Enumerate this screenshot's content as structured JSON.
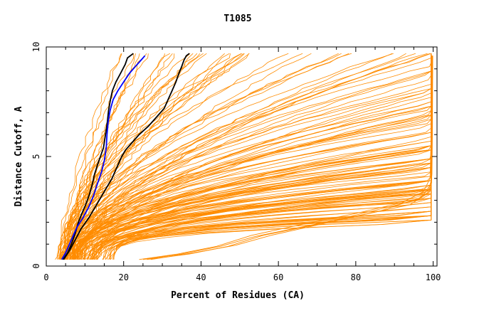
{
  "chart_data": {
    "type": "line",
    "title": "T1085",
    "xlabel": "Percent of Residues (CA)",
    "ylabel": "Distance Cutoff, A",
    "xlim": [
      0,
      101
    ],
    "ylim": [
      0,
      10
    ],
    "x_ticks": [
      0,
      20,
      40,
      60,
      80,
      100
    ],
    "y_ticks": [
      0,
      5,
      10
    ],
    "x_tick_labels": [
      "0",
      "20",
      "40",
      "60",
      "80",
      "100"
    ],
    "y_tick_labels": [
      "0",
      "5",
      "10"
    ],
    "grid": false,
    "colors": {
      "bundle": "#ff8c00",
      "highlight_black": "#000000",
      "highlight_blue": "#0000ff"
    },
    "bundle_groups": [
      {
        "x0": [
          2.5,
          6.5
        ],
        "w": [
          0.5,
          1.2
        ],
        "k": [
          1.4,
          2.2
        ],
        "count": 34
      },
      {
        "x0": [
          4.0,
          9.0
        ],
        "w": [
          0.8,
          2.0
        ],
        "k": [
          1.7,
          2.8
        ],
        "count": 44
      },
      {
        "x0": [
          6.0,
          13.0
        ],
        "w": [
          1.2,
          3.0
        ],
        "k": [
          2.0,
          3.6
        ],
        "count": 42
      },
      {
        "x0": [
          9.0,
          17.0
        ],
        "w": [
          2.2,
          4.8
        ],
        "k": [
          2.4,
          4.5
        ],
        "count": 30
      }
    ],
    "outlier_series": [
      {
        "name": "",
        "x": [
          24.0,
          34.0,
          44.0,
          53.0,
          66.0,
          80.0,
          92.0,
          97.5,
          99.2,
          99.5,
          99.6
        ],
        "y": [
          0.3,
          0.55,
          0.9,
          1.4,
          1.9,
          2.4,
          2.9,
          3.4,
          4.0,
          6.0,
          9.6
        ]
      },
      {
        "name": "",
        "x": [
          25.0,
          35.0,
          45.0,
          54.0,
          68.0,
          82.0,
          94.0,
          98.5,
          99.5,
          99.6,
          99.7
        ],
        "y": [
          0.3,
          0.55,
          0.9,
          1.35,
          1.85,
          2.35,
          2.8,
          3.3,
          3.9,
          6.0,
          9.6
        ]
      },
      {
        "name": "",
        "x": [
          26.0,
          37.0,
          47.0,
          56.0,
          70.0,
          84.0,
          95.5,
          99.0,
          99.6,
          99.7,
          99.8
        ],
        "y": [
          0.3,
          0.55,
          0.9,
          1.4,
          1.9,
          2.5,
          3.0,
          3.4,
          3.8,
          6.0,
          9.6
        ]
      },
      {
        "name": "",
        "x": [
          27.0,
          38.0,
          49.0,
          58.0,
          72.0,
          86.0,
          96.5,
          99.4,
          99.7,
          99.8,
          99.9
        ],
        "y": [
          0.3,
          0.6,
          0.95,
          1.4,
          1.95,
          2.5,
          3.1,
          3.6,
          4.2,
          6.0,
          9.6
        ]
      }
    ],
    "highlight_series": [
      {
        "name": "",
        "color": "#000000",
        "x": [
          4.3,
          5.5,
          6.5,
          7.5,
          8.3,
          9.2,
          10.2,
          11.2,
          12.0,
          12.5,
          13.2,
          14.0,
          14.8,
          15.3,
          15.8,
          16.1,
          16.6,
          17.1,
          18.0,
          19.2,
          20.4,
          21.0,
          22.5
        ],
        "y": [
          0.3,
          0.6,
          1.0,
          1.5,
          2.0,
          2.4,
          2.8,
          3.3,
          3.8,
          4.2,
          4.6,
          5.0,
          5.4,
          6.0,
          6.6,
          7.1,
          7.6,
          8.0,
          8.4,
          8.8,
          9.2,
          9.5,
          9.7
        ]
      },
      {
        "name": "",
        "color": "#0000ff",
        "x": [
          4.0,
          5.0,
          6.0,
          7.0,
          8.0,
          9.5,
          11.0,
          12.2,
          13.3,
          14.3,
          15.0,
          15.5,
          15.7,
          16.0,
          16.5,
          17.3,
          18.5,
          20.0,
          21.5,
          23.0,
          24.5,
          25.5
        ],
        "y": [
          0.3,
          0.6,
          1.0,
          1.4,
          1.8,
          2.2,
          2.7,
          3.2,
          3.8,
          4.3,
          4.8,
          5.4,
          6.0,
          6.6,
          7.1,
          7.6,
          8.0,
          8.4,
          8.8,
          9.1,
          9.4,
          9.6
        ]
      },
      {
        "name": "",
        "color": "#000000",
        "x": [
          4.5,
          6.0,
          7.5,
          9.0,
          11.0,
          13.0,
          15.0,
          17.0,
          18.5,
          19.5,
          20.5,
          22.0,
          24.0,
          26.5,
          28.5,
          30.5,
          31.5,
          32.5,
          33.5,
          34.3,
          35.0,
          35.6,
          36.2,
          37.0
        ],
        "y": [
          0.3,
          0.7,
          1.2,
          1.7,
          2.2,
          2.8,
          3.4,
          4.0,
          4.6,
          5.0,
          5.3,
          5.6,
          6.0,
          6.4,
          6.8,
          7.2,
          7.6,
          8.0,
          8.4,
          8.8,
          9.1,
          9.4,
          9.6,
          9.7
        ]
      }
    ]
  }
}
